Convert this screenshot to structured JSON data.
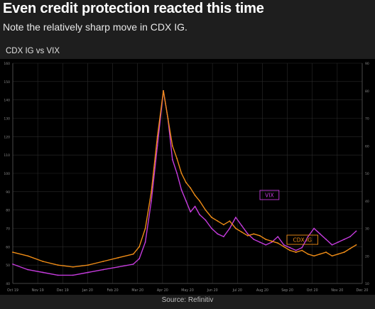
{
  "header": {
    "title": "Even credit protection reacted this time",
    "subtitle": "Note the relatively sharp move in CDX IG."
  },
  "chart_title": "CDX IG vs VIX",
  "source": "Source: Refinitiv",
  "colors": {
    "background": "#000000",
    "page": "#1e1e1e",
    "vix": "#c43bdc",
    "cdx": "#ef8c16",
    "grid": "#2b2b2b"
  },
  "chart_data": {
    "type": "line",
    "x_labels": [
      "Oct 19",
      "Nov 19",
      "Dec 19",
      "Jan 20",
      "Feb 20",
      "Mar 20",
      "Apr 20",
      "May 20",
      "Jun 20",
      "Jul 20",
      "Aug 20",
      "Sep 20",
      "Oct 20",
      "Nov 20",
      "Dec 20"
    ],
    "x": [
      0,
      0.5,
      1,
      1.5,
      2,
      2.5,
      3,
      3.5,
      4,
      4.2,
      4.4,
      4.6,
      4.8,
      5.0,
      5.15,
      5.3,
      5.45,
      5.6,
      5.75,
      5.9,
      6.05,
      6.2,
      6.4,
      6.6,
      6.8,
      7.0,
      7.2,
      7.4,
      7.6,
      7.8,
      8.0,
      8.2,
      8.4,
      8.6,
      8.8,
      9.0,
      9.2,
      9.4,
      9.6,
      9.8,
      10.0,
      10.2,
      10.4,
      10.6,
      10.8,
      11.0,
      11.2,
      11.4
    ],
    "series": [
      {
        "name": "VIX",
        "axis": "right",
        "values": [
          17,
          15,
          14,
          13,
          13,
          14,
          15,
          16,
          17,
          19,
          25,
          40,
          60,
          80,
          70,
          55,
          50,
          44,
          40,
          36,
          38,
          35,
          33,
          30,
          28,
          27,
          30,
          34,
          31,
          28,
          26,
          25,
          24,
          25,
          27,
          24,
          23,
          22,
          23,
          27,
          30,
          28,
          26,
          24,
          25,
          26,
          27,
          29
        ]
      },
      {
        "name": "CDX IG",
        "axis": "left",
        "values": [
          57,
          55,
          52,
          50,
          49,
          50,
          52,
          54,
          56,
          60,
          70,
          90,
          120,
          145,
          130,
          115,
          108,
          100,
          95,
          92,
          88,
          85,
          80,
          76,
          74,
          72,
          74,
          70,
          68,
          66,
          67,
          66,
          64,
          63,
          62,
          60,
          58,
          57,
          58,
          56,
          55,
          56,
          57,
          55,
          56,
          57,
          59,
          61
        ]
      }
    ],
    "left_ylim": [
      40,
      160
    ],
    "right_ylim": [
      10,
      90
    ],
    "legend": [
      {
        "label": "VIX",
        "color": "#c43bdc"
      },
      {
        "label": "CDX IG",
        "color": "#ef8c16"
      }
    ],
    "grid": true
  }
}
